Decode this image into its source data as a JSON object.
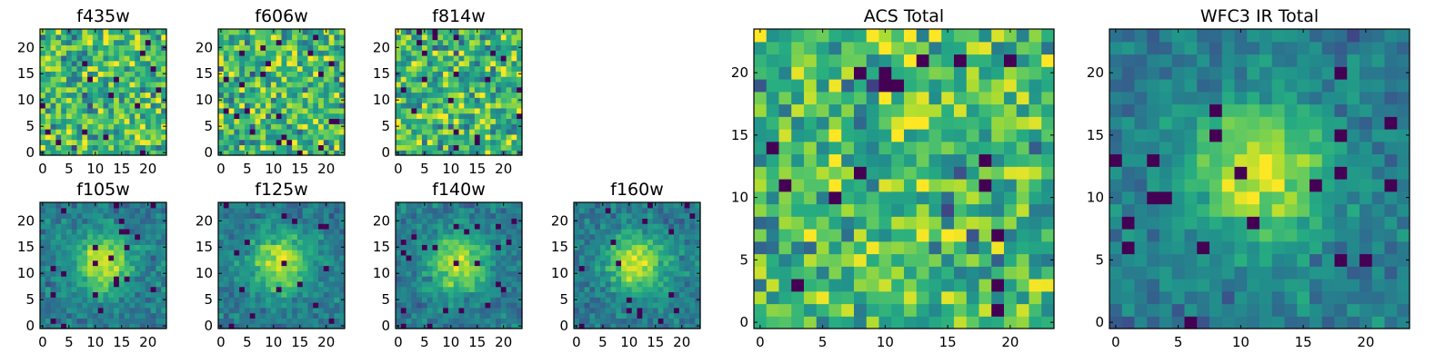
{
  "chart_data": [
    {
      "type": "heatmap",
      "title": "f435w",
      "grid_size": 24,
      "xlim": [
        0,
        24
      ],
      "ylim": [
        0,
        24
      ],
      "xticks": [
        0,
        5,
        10,
        15,
        20
      ],
      "yticks": [
        0,
        5,
        10,
        15,
        20
      ],
      "colormap": "viridis",
      "feature": "noise",
      "seed": 11
    },
    {
      "type": "heatmap",
      "title": "f606w",
      "grid_size": 24,
      "xlim": [
        0,
        24
      ],
      "ylim": [
        0,
        24
      ],
      "xticks": [
        0,
        5,
        10,
        15,
        20
      ],
      "yticks": [
        0,
        5,
        10,
        15,
        20
      ],
      "colormap": "viridis",
      "feature": "noise",
      "seed": 23
    },
    {
      "type": "heatmap",
      "title": "f814w",
      "grid_size": 24,
      "xlim": [
        0,
        24
      ],
      "ylim": [
        0,
        24
      ],
      "xticks": [
        0,
        5,
        10,
        15,
        20
      ],
      "yticks": [
        0,
        5,
        10,
        15,
        20
      ],
      "colormap": "viridis",
      "feature": "noise",
      "seed": 37
    },
    {
      "type": "heatmap",
      "title": "f105w",
      "grid_size": 24,
      "xlim": [
        0,
        24
      ],
      "ylim": [
        0,
        24
      ],
      "xticks": [
        0,
        5,
        10,
        15,
        20
      ],
      "yticks": [
        0,
        5,
        10,
        15,
        20
      ],
      "colormap": "viridis",
      "feature": "central source",
      "seed": 41
    },
    {
      "type": "heatmap",
      "title": "f125w",
      "grid_size": 24,
      "xlim": [
        0,
        24
      ],
      "ylim": [
        0,
        24
      ],
      "xticks": [
        0,
        5,
        10,
        15,
        20
      ],
      "yticks": [
        0,
        5,
        10,
        15,
        20
      ],
      "colormap": "viridis",
      "feature": "central source",
      "seed": 53
    },
    {
      "type": "heatmap",
      "title": "f140w",
      "grid_size": 24,
      "xlim": [
        0,
        24
      ],
      "ylim": [
        0,
        24
      ],
      "xticks": [
        0,
        5,
        10,
        15,
        20
      ],
      "yticks": [
        0,
        5,
        10,
        15,
        20
      ],
      "colormap": "viridis",
      "feature": "central source",
      "seed": 67
    },
    {
      "type": "heatmap",
      "title": "f160w",
      "grid_size": 24,
      "xlim": [
        0,
        24
      ],
      "ylim": [
        0,
        24
      ],
      "xticks": [
        0,
        5,
        10,
        15,
        20
      ],
      "yticks": [
        0,
        5,
        10,
        15,
        20
      ],
      "colormap": "viridis",
      "feature": "central source",
      "seed": 79
    },
    {
      "type": "heatmap",
      "title": "ACS Total",
      "grid_size": 24,
      "xlim": [
        0,
        24
      ],
      "ylim": [
        0,
        24
      ],
      "xticks": [
        0,
        5,
        10,
        15,
        20
      ],
      "yticks": [
        0,
        5,
        10,
        15,
        20
      ],
      "colormap": "viridis",
      "feature": "noise",
      "seed": 89
    },
    {
      "type": "heatmap",
      "title": "WFC3 IR Total",
      "grid_size": 24,
      "xlim": [
        0,
        24
      ],
      "ylim": [
        0,
        24
      ],
      "xticks": [
        0,
        5,
        10,
        15,
        20
      ],
      "yticks": [
        0,
        5,
        10,
        15,
        20
      ],
      "colormap": "viridis",
      "feature": "central source",
      "seed": 97
    }
  ]
}
